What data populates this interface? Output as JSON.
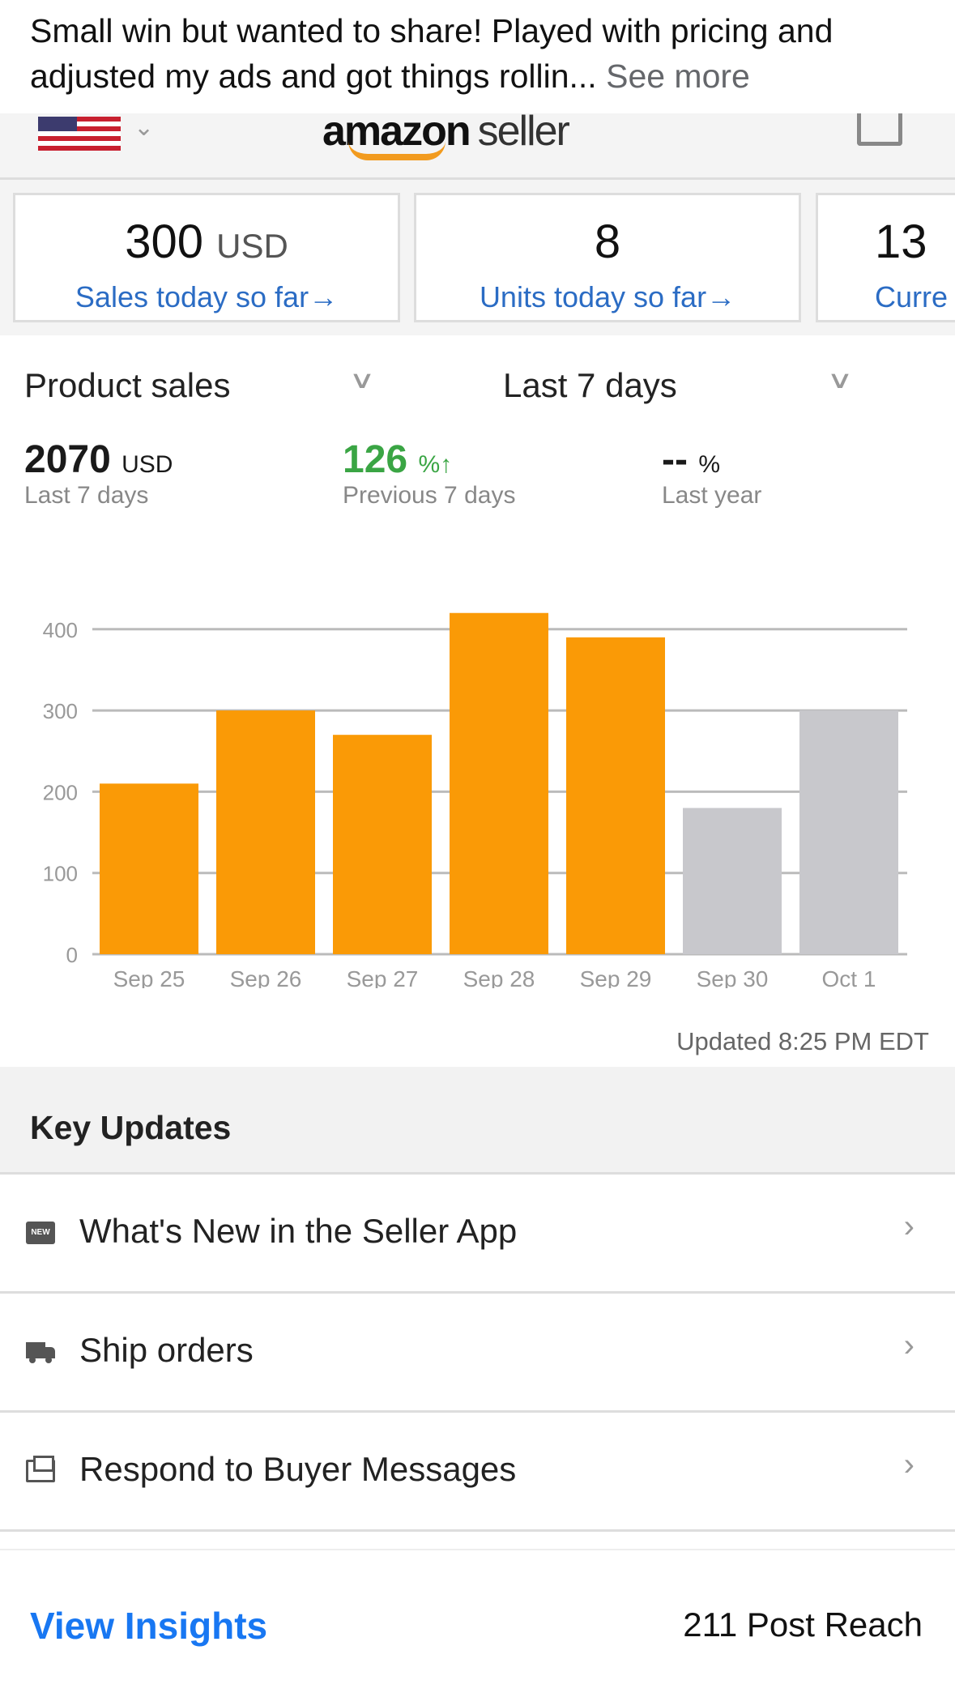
{
  "post": {
    "caption": "Small win but wanted to share! Played with pricing and adjusted my ads and got things rollin...",
    "see_more": "See more"
  },
  "header": {
    "logo_text": "amazon seller",
    "flag_icon": "us-flag-icon",
    "scan_icon": "scan-icon"
  },
  "cards": [
    {
      "value": "300",
      "unit": "USD",
      "label": "Sales today so far→"
    },
    {
      "value": "8",
      "unit": "",
      "label": "Units today so far→"
    },
    {
      "value": "13",
      "unit": "",
      "label": "Curre"
    }
  ],
  "filters": {
    "metric": "Product sales",
    "range": "Last 7 days"
  },
  "stats": [
    {
      "value": "2070",
      "unit": "USD",
      "label": "Last 7 days"
    },
    {
      "value": "126",
      "unit": "%↑",
      "label": "Previous 7 days",
      "color": "#3aa544"
    },
    {
      "value": "--",
      "unit": "%",
      "label": "Last year"
    }
  ],
  "chart_data": {
    "type": "bar",
    "categories": [
      "Sep 25",
      "Sep 26",
      "Sep 27",
      "Sep 28",
      "Sep 29",
      "Sep 30",
      "Oct 1"
    ],
    "values": [
      210,
      300,
      270,
      420,
      390,
      180,
      300
    ],
    "colors": [
      "#fa9a06",
      "#fa9a06",
      "#fa9a06",
      "#fa9a06",
      "#fa9a06",
      "#c8c8cc",
      "#c8c8cc"
    ],
    "yticks": [
      "0",
      "100",
      "200",
      "300",
      "400"
    ],
    "ylim": [
      0,
      420
    ],
    "grid": true
  },
  "updated": "Updated 8:25 PM EDT",
  "key_updates": {
    "title": "Key Updates",
    "items": [
      {
        "label": "What's New in the Seller App",
        "icon": "new-badge-icon"
      },
      {
        "label": "Ship orders",
        "icon": "truck-icon"
      },
      {
        "label": "Respond to Buyer Messages",
        "icon": "message-icon"
      }
    ]
  },
  "footer": {
    "view_insights": "View Insights",
    "reach": "211 Post Reach"
  }
}
